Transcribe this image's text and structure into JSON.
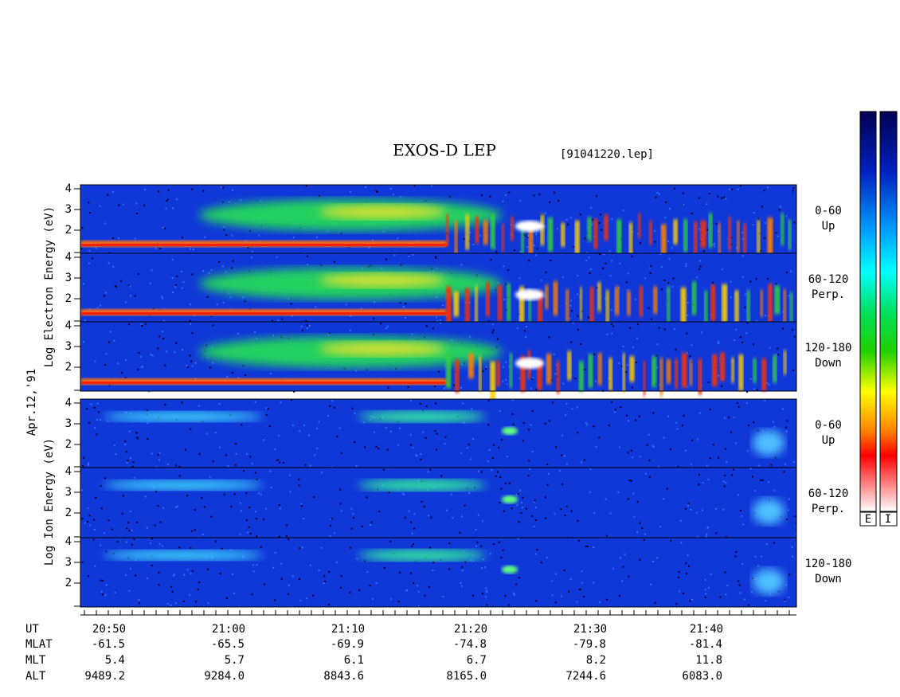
{
  "header": {
    "title": "EXOS-D LEP",
    "file": "[91041220.lep]"
  },
  "date": "Apr.12,'91",
  "y_ticks": [
    4,
    3,
    2
  ],
  "electron": {
    "axis_label": "Log Electron Energy (eV)",
    "panels": [
      {
        "angle": "0-60",
        "direction": "Up"
      },
      {
        "angle": "60-120",
        "direction": "Perp."
      },
      {
        "angle": "120-180",
        "direction": "Down"
      }
    ]
  },
  "ion": {
    "axis_label": "Log Ion Energy (eV)",
    "panels": [
      {
        "angle": "0-60",
        "direction": "Up"
      },
      {
        "angle": "60-120",
        "direction": "Perp."
      },
      {
        "angle": "120-180",
        "direction": "Down"
      }
    ]
  },
  "orbit_table": {
    "rows": [
      {
        "label": "UT",
        "values": [
          "20:50",
          "21:00",
          "21:10",
          "21:20",
          "21:30",
          "21:40"
        ]
      },
      {
        "label": "MLAT",
        "values": [
          "-61.5",
          "-65.5",
          "-69.9",
          "-74.8",
          "-79.8",
          "-81.4"
        ]
      },
      {
        "label": "MLT",
        "values": [
          "5.4",
          "5.7",
          "6.1",
          "6.7",
          "8.2",
          "11.8"
        ]
      },
      {
        "label": "ALT",
        "values": [
          "9489.2",
          "9284.0",
          "8843.6",
          "8165.0",
          "7244.6",
          "6083.0"
        ]
      }
    ]
  },
  "colorbar": {
    "labels": [
      "E",
      "I"
    ]
  }
}
